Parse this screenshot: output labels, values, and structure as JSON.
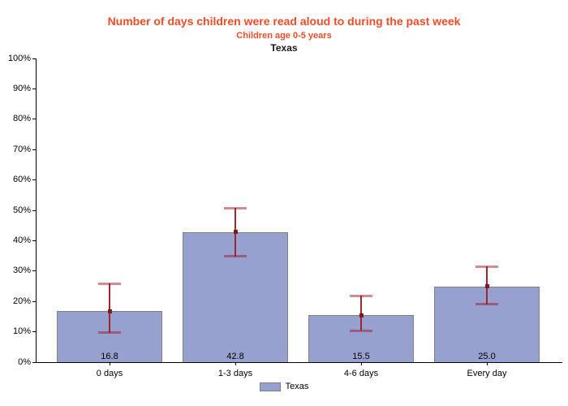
{
  "colors": {
    "title_color": "#EE4D2B",
    "bar_fill": "#97A1CF",
    "bar_border": "#808080",
    "error_line": "#9E2630",
    "error_cap": "rgba(158,28,38,0.5)",
    "error_marker": "#7E1A22",
    "axis_color": "#000000"
  },
  "chart_data": {
    "type": "bar",
    "title": "Number of days children were read aloud to during the past week",
    "subtitle": "Children age 0-5 years",
    "region": "Texas",
    "categories": [
      "0 days",
      "1-3 days",
      "4-6 days",
      "Every day"
    ],
    "series": [
      {
        "name": "Texas",
        "values": [
          16.8,
          42.8,
          15.5,
          25.0
        ]
      }
    ],
    "value_labels": [
      "16.8",
      "42.8",
      "15.5",
      "25.0"
    ],
    "error_bars": [
      {
        "low": 9.7,
        "high": 25.9
      },
      {
        "low": 34.8,
        "high": 50.7
      },
      {
        "low": 10.3,
        "high": 21.8
      },
      {
        "low": 19.0,
        "high": 31.5
      }
    ],
    "xlabel": "",
    "ylabel": "",
    "ylim": [
      0,
      100
    ],
    "ytick_labels": [
      "0%",
      "10%",
      "20%",
      "30%",
      "40%",
      "50%",
      "60%",
      "70%",
      "80%",
      "90%",
      "100%"
    ],
    "grid": false,
    "legend": {
      "label": "Texas",
      "position": "bottom"
    }
  }
}
